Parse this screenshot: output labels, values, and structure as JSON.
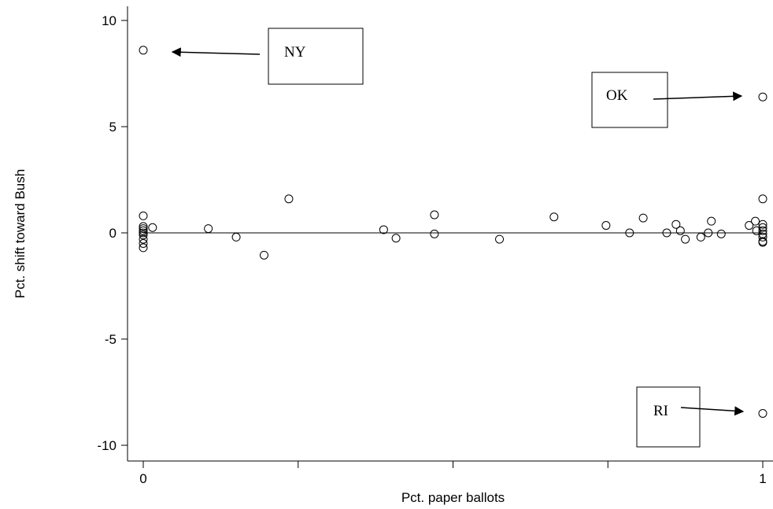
{
  "chart_data": {
    "type": "scatter",
    "title": "",
    "xlabel": "Pct. paper ballots",
    "ylabel": "Pct. shift toward Bush",
    "xlim": [
      0,
      1
    ],
    "ylim": [
      -10,
      10
    ],
    "x_ticks": [
      0,
      0.25,
      0.5,
      0.75,
      1
    ],
    "x_tick_labels": [
      "0",
      "",
      "",
      "",
      "1"
    ],
    "y_ticks": [
      -10,
      -5,
      0,
      5,
      10
    ],
    "y_tick_labels": [
      "-10",
      "-5",
      "0",
      "5",
      "10"
    ],
    "reference_line": 0,
    "grid": false,
    "marker": "hollow-circle",
    "points": [
      {
        "x": 0,
        "y": 8.6
      },
      {
        "x": 0,
        "y": 0.8
      },
      {
        "x": 0,
        "y": 0.3
      },
      {
        "x": 0,
        "y": 0.2
      },
      {
        "x": 0,
        "y": 0.1
      },
      {
        "x": 0,
        "y": 0.0
      },
      {
        "x": 0,
        "y": -0.1
      },
      {
        "x": 0,
        "y": -0.3
      },
      {
        "x": 0,
        "y": -0.5
      },
      {
        "x": 0,
        "y": -0.7
      },
      {
        "x": 0.015,
        "y": 0.25
      },
      {
        "x": 0.105,
        "y": 0.2
      },
      {
        "x": 0.15,
        "y": -0.2
      },
      {
        "x": 0.195,
        "y": -1.05
      },
      {
        "x": 0.235,
        "y": 1.6
      },
      {
        "x": 0.388,
        "y": 0.15
      },
      {
        "x": 0.408,
        "y": -0.25
      },
      {
        "x": 0.47,
        "y": 0.85
      },
      {
        "x": 0.47,
        "y": -0.05
      },
      {
        "x": 0.575,
        "y": -0.3
      },
      {
        "x": 0.663,
        "y": 0.75
      },
      {
        "x": 0.747,
        "y": 0.35
      },
      {
        "x": 0.785,
        "y": 0.0
      },
      {
        "x": 0.807,
        "y": 0.7
      },
      {
        "x": 0.845,
        "y": 0.0
      },
      {
        "x": 0.86,
        "y": 0.4
      },
      {
        "x": 0.867,
        "y": 0.1
      },
      {
        "x": 0.875,
        "y": -0.3
      },
      {
        "x": 0.9,
        "y": -0.2
      },
      {
        "x": 0.912,
        "y": 0.0
      },
      {
        "x": 0.917,
        "y": 0.55
      },
      {
        "x": 0.933,
        "y": -0.05
      },
      {
        "x": 0.978,
        "y": 0.35
      },
      {
        "x": 0.988,
        "y": 0.55
      },
      {
        "x": 0.99,
        "y": 0.1
      },
      {
        "x": 1,
        "y": 6.4
      },
      {
        "x": 1,
        "y": 1.6
      },
      {
        "x": 1,
        "y": 0.4
      },
      {
        "x": 1,
        "y": 0.25
      },
      {
        "x": 1,
        "y": 0.1
      },
      {
        "x": 1,
        "y": -0.05
      },
      {
        "x": 1,
        "y": -0.2
      },
      {
        "x": 1,
        "y": -0.4
      },
      {
        "x": 1,
        "y": -0.45
      },
      {
        "x": 1,
        "y": -8.5
      }
    ],
    "annotations": [
      {
        "text": "NY",
        "target": {
          "x": 0,
          "y": 8.6
        }
      },
      {
        "text": "OK",
        "target": {
          "x": 1,
          "y": 6.4
        }
      },
      {
        "text": "RI",
        "target": {
          "x": 1,
          "y": -8.5
        }
      }
    ]
  }
}
